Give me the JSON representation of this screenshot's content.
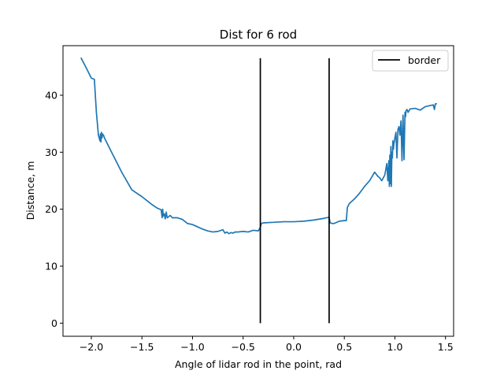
{
  "chart_data": {
    "type": "line",
    "title": "Dist for 6 rod",
    "xlabel": "Angle of lidar rod in the point, rad",
    "ylabel": "Distance, m",
    "xlim": [
      -2.28,
      1.58
    ],
    "ylim": [
      -2.3,
      48.7
    ],
    "xticks": [
      -2.0,
      -1.5,
      -1.0,
      -0.5,
      0.0,
      0.5,
      1.0,
      1.5
    ],
    "xtick_labels": [
      "−2.0",
      "−1.5",
      "−1.0",
      "−0.5",
      "0.0",
      "0.5",
      "1.0",
      "1.5"
    ],
    "yticks": [
      0,
      10,
      20,
      30,
      40
    ],
    "ytick_labels": [
      "0",
      "10",
      "20",
      "30",
      "40"
    ],
    "grid": false,
    "legend": {
      "placement": "top-right",
      "entries": [
        "border"
      ]
    },
    "series": [
      {
        "color": "#1f77b4",
        "x": [
          -2.1,
          -2.05,
          -2.0,
          -1.97,
          -1.95,
          -1.93,
          -1.915,
          -1.91,
          -1.905,
          -1.9,
          -1.895,
          -1.89,
          -1.88,
          -1.87,
          -1.8,
          -1.7,
          -1.6,
          -1.5,
          -1.45,
          -1.4,
          -1.35,
          -1.31,
          -1.3,
          -1.295,
          -1.29,
          -1.28,
          -1.27,
          -1.26,
          -1.25,
          -1.22,
          -1.2,
          -1.15,
          -1.1,
          -1.05,
          -1.0,
          -0.95,
          -0.9,
          -0.85,
          -0.8,
          -0.75,
          -0.7,
          -0.68,
          -0.66,
          -0.64,
          -0.62,
          -0.6,
          -0.58,
          -0.55,
          -0.5,
          -0.45,
          -0.4,
          -0.35,
          -0.34,
          -0.33,
          -0.32,
          -0.3,
          -0.2,
          -0.1,
          0.0,
          0.1,
          0.2,
          0.3,
          0.35,
          0.36,
          0.38,
          0.4,
          0.45,
          0.5,
          0.52,
          0.53,
          0.55,
          0.6,
          0.65,
          0.7,
          0.75,
          0.8,
          0.83,
          0.85,
          0.87,
          0.9,
          0.91,
          0.92,
          0.93,
          0.94,
          0.945,
          0.95,
          0.955,
          0.96,
          0.965,
          0.97,
          0.975,
          0.98,
          0.985,
          0.99,
          1.0,
          1.01,
          1.02,
          1.03,
          1.04,
          1.05,
          1.06,
          1.07,
          1.08,
          1.09,
          1.1,
          1.105,
          1.11,
          1.12,
          1.13,
          1.15,
          1.2,
          1.25,
          1.3,
          1.35,
          1.38,
          1.39,
          1.4,
          1.41
        ],
        "y": [
          46.5,
          44.8,
          43.0,
          42.8,
          37.0,
          33.0,
          32.0,
          33.2,
          31.8,
          33.5,
          32.5,
          33.2,
          33.0,
          32.5,
          30.0,
          26.5,
          23.4,
          22.2,
          21.5,
          20.8,
          20.2,
          19.9,
          18.5,
          20.0,
          18.8,
          19.2,
          18.3,
          19.5,
          18.5,
          18.9,
          18.5,
          18.5,
          18.2,
          17.5,
          17.3,
          16.9,
          16.5,
          16.2,
          16.0,
          16.1,
          16.4,
          15.8,
          16.0,
          15.7,
          15.9,
          15.8,
          16.0,
          16.0,
          16.1,
          16.0,
          16.3,
          16.2,
          16.5,
          16.8,
          17.5,
          17.6,
          17.7,
          17.8,
          17.8,
          17.9,
          18.1,
          18.4,
          18.6,
          17.6,
          17.5,
          17.5,
          17.9,
          18.0,
          18.0,
          20.3,
          21.0,
          21.8,
          22.8,
          24.0,
          25.0,
          26.5,
          25.8,
          25.5,
          25.0,
          26.0,
          27.0,
          28.0,
          25.0,
          28.5,
          24.0,
          29.5,
          24.5,
          31.0,
          24.0,
          30.0,
          29.0,
          32.0,
          30.5,
          31.5,
          32.5,
          33.5,
          29.0,
          34.0,
          34.5,
          33.0,
          35.5,
          28.5,
          36.5,
          28.7,
          37.0,
          36.2,
          37.3,
          37.5,
          37.0,
          37.6,
          37.7,
          37.4,
          38.0,
          38.2,
          38.3,
          37.5,
          38.5,
          38.5
        ]
      },
      {
        "name": "border",
        "color": "#000000",
        "segments": [
          {
            "x": -0.33,
            "y0": 0,
            "y1": 46.5
          },
          {
            "x": 0.35,
            "y0": 0,
            "y1": 46.5
          }
        ]
      }
    ]
  }
}
